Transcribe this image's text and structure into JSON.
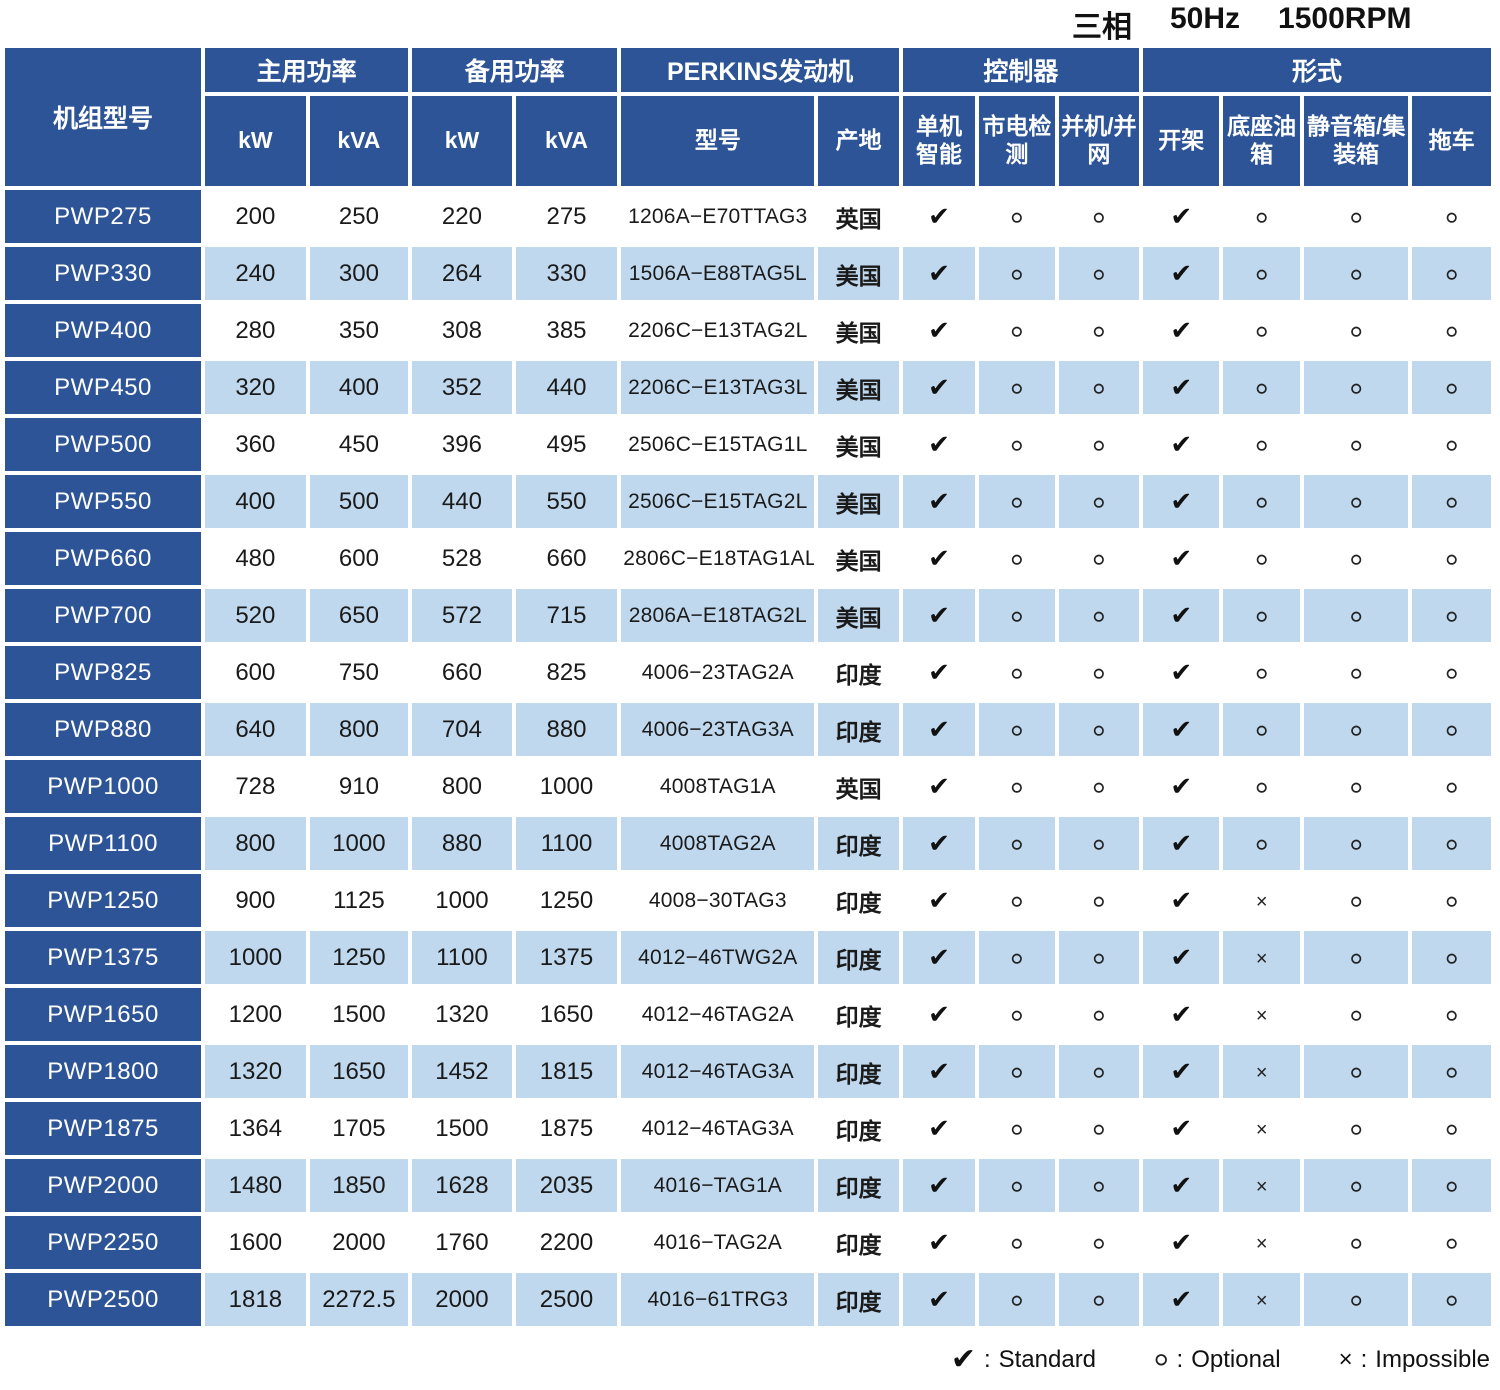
{
  "title": {
    "phase": "三相",
    "frequency": "50Hz",
    "rpm": "1500RPM"
  },
  "colors": {
    "header_blue": "#2d5496",
    "row_light_blue": "#bfd8ee",
    "row_white": "#ffffff",
    "text": "#1a1a1a"
  },
  "table": {
    "model_header": "机组型号",
    "groups": [
      {
        "label": "主用功率",
        "span": 2
      },
      {
        "label": "备用功率",
        "span": 2
      },
      {
        "label": "PERKINS发动机",
        "span": 2
      },
      {
        "label": "控制器",
        "span": 3
      },
      {
        "label": "形式",
        "span": 4
      }
    ],
    "subheaders": [
      "kW",
      "kVA",
      "kW",
      "kVA",
      "型号",
      "产地",
      "单机智能",
      "市电检测",
      "并机/并网",
      "开架",
      "底座油箱",
      "静音箱/集装箱",
      "拖车"
    ],
    "symbol_key": {
      "standard": "✔",
      "optional": "○",
      "impossible": "×"
    },
    "rows": [
      {
        "model": "PWP275",
        "prime_kw": "200",
        "prime_kva": "250",
        "standby_kw": "220",
        "standby_kva": "275",
        "engine_model": "1206A−E70TTAG3",
        "origin": "英国",
        "controller": [
          "✔",
          "○",
          "○"
        ],
        "form": [
          "✔",
          "○",
          "○",
          "○"
        ]
      },
      {
        "model": "PWP330",
        "prime_kw": "240",
        "prime_kva": "300",
        "standby_kw": "264",
        "standby_kva": "330",
        "engine_model": "1506A−E88TAG5L",
        "origin": "美国",
        "controller": [
          "✔",
          "○",
          "○"
        ],
        "form": [
          "✔",
          "○",
          "○",
          "○"
        ]
      },
      {
        "model": "PWP400",
        "prime_kw": "280",
        "prime_kva": "350",
        "standby_kw": "308",
        "standby_kva": "385",
        "engine_model": "2206C−E13TAG2L",
        "origin": "美国",
        "controller": [
          "✔",
          "○",
          "○"
        ],
        "form": [
          "✔",
          "○",
          "○",
          "○"
        ]
      },
      {
        "model": "PWP450",
        "prime_kw": "320",
        "prime_kva": "400",
        "standby_kw": "352",
        "standby_kva": "440",
        "engine_model": "2206C−E13TAG3L",
        "origin": "美国",
        "controller": [
          "✔",
          "○",
          "○"
        ],
        "form": [
          "✔",
          "○",
          "○",
          "○"
        ]
      },
      {
        "model": "PWP500",
        "prime_kw": "360",
        "prime_kva": "450",
        "standby_kw": "396",
        "standby_kva": "495",
        "engine_model": "2506C−E15TAG1L",
        "origin": "美国",
        "controller": [
          "✔",
          "○",
          "○"
        ],
        "form": [
          "✔",
          "○",
          "○",
          "○"
        ]
      },
      {
        "model": "PWP550",
        "prime_kw": "400",
        "prime_kva": "500",
        "standby_kw": "440",
        "standby_kva": "550",
        "engine_model": "2506C−E15TAG2L",
        "origin": "美国",
        "controller": [
          "✔",
          "○",
          "○"
        ],
        "form": [
          "✔",
          "○",
          "○",
          "○"
        ]
      },
      {
        "model": "PWP660",
        "prime_kw": "480",
        "prime_kva": "600",
        "standby_kw": "528",
        "standby_kva": "660",
        "engine_model": "2806C−E18TAG1AL",
        "origin": "美国",
        "controller": [
          "✔",
          "○",
          "○"
        ],
        "form": [
          "✔",
          "○",
          "○",
          "○"
        ]
      },
      {
        "model": "PWP700",
        "prime_kw": "520",
        "prime_kva": "650",
        "standby_kw": "572",
        "standby_kva": "715",
        "engine_model": "2806A−E18TAG2L",
        "origin": "美国",
        "controller": [
          "✔",
          "○",
          "○"
        ],
        "form": [
          "✔",
          "○",
          "○",
          "○"
        ]
      },
      {
        "model": "PWP825",
        "prime_kw": "600",
        "prime_kva": "750",
        "standby_kw": "660",
        "standby_kva": "825",
        "engine_model": "4006−23TAG2A",
        "origin": "印度",
        "controller": [
          "✔",
          "○",
          "○"
        ],
        "form": [
          "✔",
          "○",
          "○",
          "○"
        ]
      },
      {
        "model": "PWP880",
        "prime_kw": "640",
        "prime_kva": "800",
        "standby_kw": "704",
        "standby_kva": "880",
        "engine_model": "4006−23TAG3A",
        "origin": "印度",
        "controller": [
          "✔",
          "○",
          "○"
        ],
        "form": [
          "✔",
          "○",
          "○",
          "○"
        ]
      },
      {
        "model": "PWP1000",
        "prime_kw": "728",
        "prime_kva": "910",
        "standby_kw": "800",
        "standby_kva": "1000",
        "engine_model": "4008TAG1A",
        "origin": "英国",
        "controller": [
          "✔",
          "○",
          "○"
        ],
        "form": [
          "✔",
          "○",
          "○",
          "○"
        ]
      },
      {
        "model": "PWP1100",
        "prime_kw": "800",
        "prime_kva": "1000",
        "standby_kw": "880",
        "standby_kva": "1100",
        "engine_model": "4008TAG2A",
        "origin": "印度",
        "controller": [
          "✔",
          "○",
          "○"
        ],
        "form": [
          "✔",
          "○",
          "○",
          "○"
        ]
      },
      {
        "model": "PWP1250",
        "prime_kw": "900",
        "prime_kva": "1125",
        "standby_kw": "1000",
        "standby_kva": "1250",
        "engine_model": "4008−30TAG3",
        "origin": "印度",
        "controller": [
          "✔",
          "○",
          "○"
        ],
        "form": [
          "✔",
          "×",
          "○",
          "○"
        ]
      },
      {
        "model": "PWP1375",
        "prime_kw": "1000",
        "prime_kva": "1250",
        "standby_kw": "1100",
        "standby_kva": "1375",
        "engine_model": "4012−46TWG2A",
        "origin": "印度",
        "controller": [
          "✔",
          "○",
          "○"
        ],
        "form": [
          "✔",
          "×",
          "○",
          "○"
        ]
      },
      {
        "model": "PWP1650",
        "prime_kw": "1200",
        "prime_kva": "1500",
        "standby_kw": "1320",
        "standby_kva": "1650",
        "engine_model": "4012−46TAG2A",
        "origin": "印度",
        "controller": [
          "✔",
          "○",
          "○"
        ],
        "form": [
          "✔",
          "×",
          "○",
          "○"
        ]
      },
      {
        "model": "PWP1800",
        "prime_kw": "1320",
        "prime_kva": "1650",
        "standby_kw": "1452",
        "standby_kva": "1815",
        "engine_model": "4012−46TAG3A",
        "origin": "印度",
        "controller": [
          "✔",
          "○",
          "○"
        ],
        "form": [
          "✔",
          "×",
          "○",
          "○"
        ]
      },
      {
        "model": "PWP1875",
        "prime_kw": "1364",
        "prime_kva": "1705",
        "standby_kw": "1500",
        "standby_kva": "1875",
        "engine_model": "4012−46TAG3A",
        "origin": "印度",
        "controller": [
          "✔",
          "○",
          "○"
        ],
        "form": [
          "✔",
          "×",
          "○",
          "○"
        ]
      },
      {
        "model": "PWP2000",
        "prime_kw": "1480",
        "prime_kva": "1850",
        "standby_kw": "1628",
        "standby_kva": "2035",
        "engine_model": "4016−TAG1A",
        "origin": "印度",
        "controller": [
          "✔",
          "○",
          "○"
        ],
        "form": [
          "✔",
          "×",
          "○",
          "○"
        ]
      },
      {
        "model": "PWP2250",
        "prime_kw": "1600",
        "prime_kva": "2000",
        "standby_kw": "1760",
        "standby_kva": "2200",
        "engine_model": "4016−TAG2A",
        "origin": "印度",
        "controller": [
          "✔",
          "○",
          "○"
        ],
        "form": [
          "✔",
          "×",
          "○",
          "○"
        ]
      },
      {
        "model": "PWP2500",
        "prime_kw": "1818",
        "prime_kva": "2272.5",
        "standby_kw": "2000",
        "standby_kva": "2500",
        "engine_model": "4016−61TRG3",
        "origin": "印度",
        "controller": [
          "✔",
          "○",
          "○"
        ],
        "form": [
          "✔",
          "×",
          "○",
          "○"
        ]
      }
    ]
  },
  "legend": {
    "items": [
      {
        "symbol": "✔",
        "separator": ":",
        "label": "Standard"
      },
      {
        "symbol": "○",
        "separator": ":",
        "label": "Optional"
      },
      {
        "symbol": "×",
        "separator": ":",
        "label": "Impossible"
      }
    ]
  }
}
